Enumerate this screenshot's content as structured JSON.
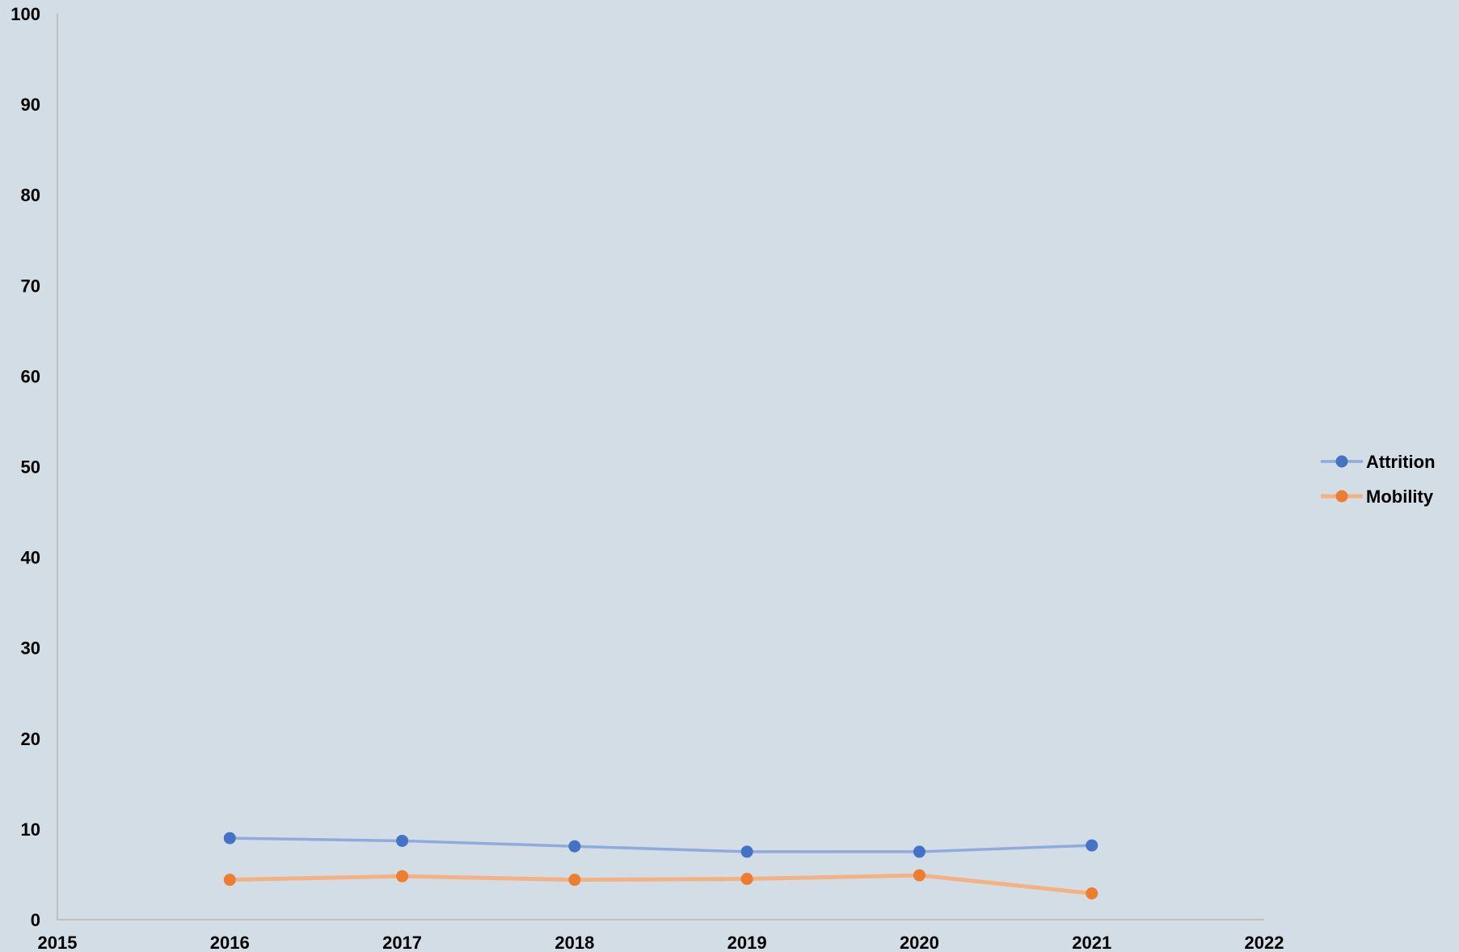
{
  "chart_data": {
    "type": "scatter",
    "title": "",
    "xlabel": "",
    "ylabel": "",
    "xlim": [
      2015,
      2022
    ],
    "ylim": [
      0,
      100
    ],
    "x_ticks": [
      2015,
      2016,
      2017,
      2018,
      2019,
      2020,
      2021,
      2022
    ],
    "y_ticks": [
      0,
      10,
      20,
      30,
      40,
      50,
      60,
      70,
      80,
      90,
      100
    ],
    "grid": false,
    "legend_position": "right",
    "series": [
      {
        "name": "Attrition",
        "marker_color": "#4472c4",
        "line_color": "#8faadc",
        "x": [
          2016,
          2017,
          2018,
          2019,
          2020,
          2021
        ],
        "y": [
          9.0,
          8.7,
          8.1,
          7.5,
          7.5,
          8.2
        ]
      },
      {
        "name": "Mobility",
        "marker_color": "#ed7d31",
        "line_color": "#f4b183",
        "x": [
          2016,
          2017,
          2018,
          2019,
          2020,
          2021
        ],
        "y": [
          4.4,
          4.8,
          4.4,
          4.5,
          4.9,
          2.9
        ]
      }
    ]
  },
  "colors": {
    "background": "#d3dde6",
    "axis": "#bfbfbf",
    "text": "#000000"
  }
}
